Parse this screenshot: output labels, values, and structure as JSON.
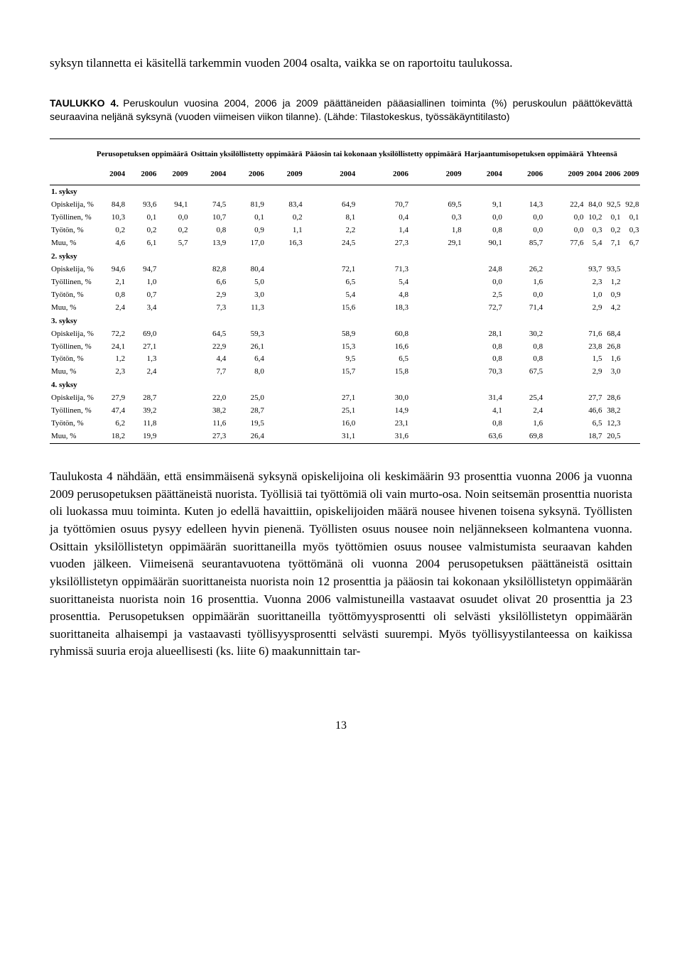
{
  "intro": "syksyn tilannetta ei käsitellä tarkemmin vuoden 2004 osalta, vaikka se on raportoitu taulukossa.",
  "caption": {
    "label": "TAULUKKO 4.",
    "body": "Peruskoulun vuosina 2004, 2006 ja 2009 päättäneiden pääasiallinen toiminta (%) peruskoulun päättökevättä seuraavina neljänä syksynä (vuoden viimeisen viikon tilanne). (Lähde: Tilastokeskus, työssäkäyntitilasto)"
  },
  "groups": [
    "Perusopetuksen oppimäärä",
    "Osittain yksilöllistetty oppimäärä",
    "Pääosin tai kokonaan yksilöllistetty oppimäärä",
    "Harjaantumisopetuksen oppimäärä",
    "Yhteensä"
  ],
  "years": [
    "2004",
    "2006",
    "2009",
    "2004",
    "2006",
    "2009",
    "2004",
    "2006",
    "2009",
    "2004",
    "2006",
    "2009",
    "2004",
    "2006",
    "2009"
  ],
  "sections": [
    {
      "title": "1. syksy",
      "rows": [
        {
          "label": "Opiskelija, %",
          "v": [
            "84,8",
            "93,6",
            "94,1",
            "74,5",
            "81,9",
            "83,4",
            "64,9",
            "70,7",
            "69,5",
            "9,1",
            "14,3",
            "22,4",
            "84,0",
            "92,5",
            "92,8"
          ]
        },
        {
          "label": "Työllinen, %",
          "v": [
            "10,3",
            "0,1",
            "0,0",
            "10,7",
            "0,1",
            "0,2",
            "8,1",
            "0,4",
            "0,3",
            "0,0",
            "0,0",
            "0,0",
            "10,2",
            "0,1",
            "0,1"
          ]
        },
        {
          "label": "Työtön, %",
          "v": [
            "0,2",
            "0,2",
            "0,2",
            "0,8",
            "0,9",
            "1,1",
            "2,2",
            "1,4",
            "1,8",
            "0,8",
            "0,0",
            "0,0",
            "0,3",
            "0,2",
            "0,3"
          ]
        },
        {
          "label": "Muu, %",
          "v": [
            "4,6",
            "6,1",
            "5,7",
            "13,9",
            "17,0",
            "16,3",
            "24,5",
            "27,3",
            "29,1",
            "90,1",
            "85,7",
            "77,6",
            "5,4",
            "7,1",
            "6,7"
          ]
        }
      ]
    },
    {
      "title": "2. syksy",
      "rows": [
        {
          "label": "Opiskelija, %",
          "v": [
            "94,6",
            "94,7",
            "",
            "82,8",
            "80,4",
            "",
            "72,1",
            "71,3",
            "",
            "24,8",
            "26,2",
            "",
            "93,7",
            "93,5",
            ""
          ]
        },
        {
          "label": "Työllinen, %",
          "v": [
            "2,1",
            "1,0",
            "",
            "6,6",
            "5,0",
            "",
            "6,5",
            "5,4",
            "",
            "0,0",
            "1,6",
            "",
            "2,3",
            "1,2",
            ""
          ]
        },
        {
          "label": "Työtön, %",
          "v": [
            "0,8",
            "0,7",
            "",
            "2,9",
            "3,0",
            "",
            "5,4",
            "4,8",
            "",
            "2,5",
            "0,0",
            "",
            "1,0",
            "0,9",
            ""
          ]
        },
        {
          "label": "Muu, %",
          "v": [
            "2,4",
            "3,4",
            "",
            "7,3",
            "11,3",
            "",
            "15,6",
            "18,3",
            "",
            "72,7",
            "71,4",
            "",
            "2,9",
            "4,2",
            ""
          ]
        }
      ]
    },
    {
      "title": "3. syksy",
      "rows": [
        {
          "label": "Opiskelija, %",
          "v": [
            "72,2",
            "69,0",
            "",
            "64,5",
            "59,3",
            "",
            "58,9",
            "60,8",
            "",
            "28,1",
            "30,2",
            "",
            "71,6",
            "68,4",
            ""
          ]
        },
        {
          "label": "Työllinen, %",
          "v": [
            "24,1",
            "27,1",
            "",
            "22,9",
            "26,1",
            "",
            "15,3",
            "16,6",
            "",
            "0,8",
            "0,8",
            "",
            "23,8",
            "26,8",
            ""
          ]
        },
        {
          "label": "Työtön, %",
          "v": [
            "1,2",
            "1,3",
            "",
            "4,4",
            "6,4",
            "",
            "9,5",
            "6,5",
            "",
            "0,8",
            "0,8",
            "",
            "1,5",
            "1,6",
            ""
          ]
        },
        {
          "label": "Muu, %",
          "v": [
            "2,3",
            "2,4",
            "",
            "7,7",
            "8,0",
            "",
            "15,7",
            "15,8",
            "",
            "70,3",
            "67,5",
            "",
            "2,9",
            "3,0",
            ""
          ]
        }
      ]
    },
    {
      "title": "4. syksy",
      "rows": [
        {
          "label": "Opiskelija, %",
          "v": [
            "27,9",
            "28,7",
            "",
            "22,0",
            "25,0",
            "",
            "27,1",
            "30,0",
            "",
            "31,4",
            "25,4",
            "",
            "27,7",
            "28,6",
            ""
          ]
        },
        {
          "label": "Työllinen, %",
          "v": [
            "47,4",
            "39,2",
            "",
            "38,2",
            "28,7",
            "",
            "25,1",
            "14,9",
            "",
            "4,1",
            "2,4",
            "",
            "46,6",
            "38,2",
            ""
          ]
        },
        {
          "label": "Työtön, %",
          "v": [
            "6,2",
            "11,8",
            "",
            "11,6",
            "19,5",
            "",
            "16,0",
            "23,1",
            "",
            "0,8",
            "1,6",
            "",
            "6,5",
            "12,3",
            ""
          ]
        },
        {
          "label": "Muu, %",
          "v": [
            "18,2",
            "19,9",
            "",
            "27,3",
            "26,4",
            "",
            "31,1",
            "31,6",
            "",
            "63,6",
            "69,8",
            "",
            "18,7",
            "20,5",
            ""
          ]
        }
      ]
    }
  ],
  "outro": "Taulukosta 4 nähdään, että ensimmäisenä syksynä opiskelijoina oli keskimäärin 93 prosenttia vuonna 2006 ja vuonna 2009 perusopetuksen päättäneistä nuorista. Työllisiä tai työttömiä oli vain murto-osa. Noin seitsemän prosenttia nuorista oli luokassa muu toiminta. Kuten jo edellä havaittiin, opiskelijoiden määrä nousee hivenen toisena syksynä. Työllisten ja työttömien osuus pysyy edelleen hyvin pienenä. Työllisten osuus nousee noin neljännekseen kolmantena vuonna. Osittain yksilöllistetyn oppimäärän suorittaneilla myös työttömien osuus nousee valmistumista seuraavan kahden vuoden jälkeen. Viimeisenä seurantavuotena työttömänä oli vuonna 2004 perusopetuksen päättäneistä osittain yksilöllistetyn oppimäärän suorittaneista nuorista noin 12 prosenttia ja pääosin tai kokonaan yksilöllistetyn oppimäärän suorittaneista nuorista noin 16 prosenttia. Vuonna 2006 valmistuneilla vastaavat osuudet olivat 20 prosenttia ja 23 prosenttia. Perusopetuksen oppimäärän suorittaneilla työttömyysprosentti oli selvästi yksilöllistetyn oppimäärän suorittaneita alhaisempi ja vastaavasti työllisyysprosentti selvästi suurempi. Myös työllisyystilanteessa on kaikissa ryhmissä suuria eroja alueellisesti (ks. liite 6) maakunnittain tar-",
  "pagenum": "13"
}
